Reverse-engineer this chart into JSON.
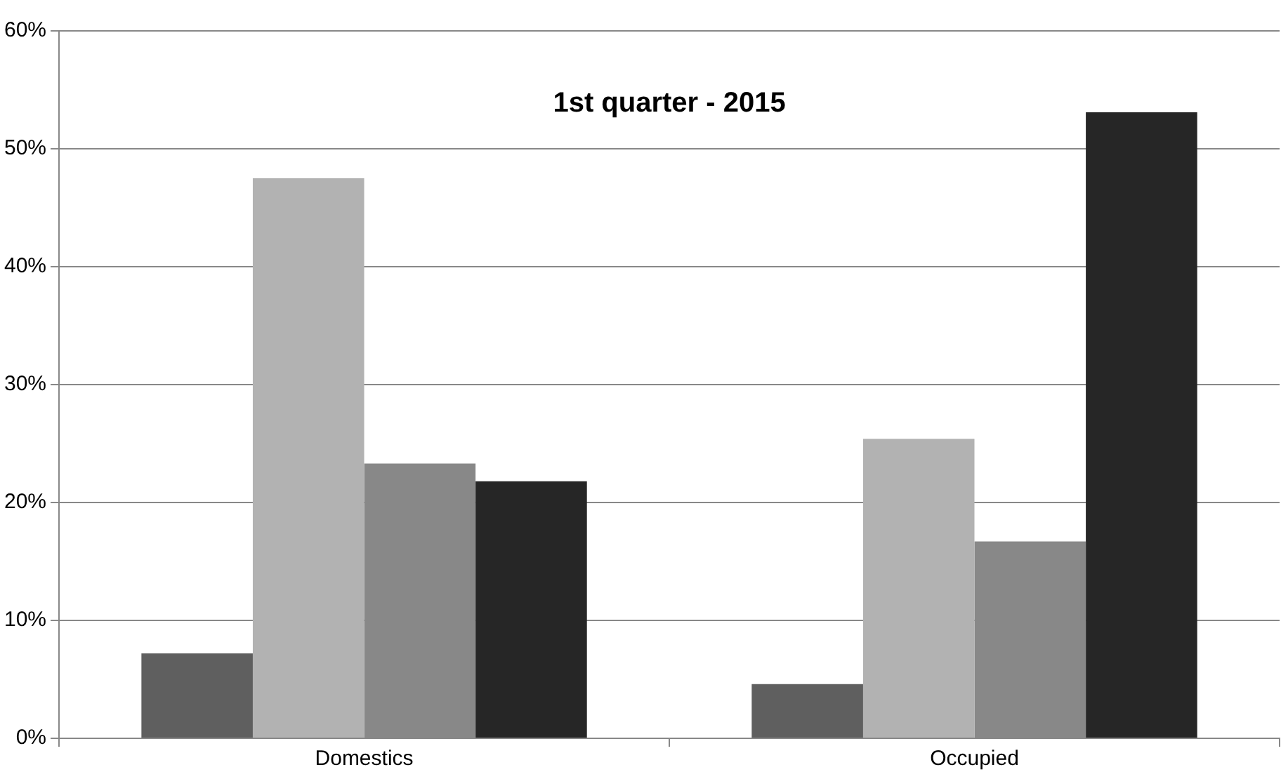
{
  "chart_data": {
    "type": "bar",
    "title": "1st quarter - 2015",
    "categories": [
      "Domestics",
      "Occupied"
    ],
    "series": [
      {
        "color": "#5f5f5f",
        "values": [
          7.2,
          4.6
        ]
      },
      {
        "color": "#b2b2b2",
        "values": [
          47.5,
          25.4
        ]
      },
      {
        "color": "#888888",
        "values": [
          23.3,
          16.7
        ]
      },
      {
        "color": "#262626",
        "values": [
          21.8,
          53.1
        ]
      }
    ],
    "ylim": [
      0,
      60
    ],
    "yticks": [
      {
        "value": 0,
        "label": "0%"
      },
      {
        "value": 10,
        "label": "10%"
      },
      {
        "value": 20,
        "label": "20%"
      },
      {
        "value": 30,
        "label": "30%"
      },
      {
        "value": 40,
        "label": "40%"
      },
      {
        "value": 50,
        "label": "50%"
      },
      {
        "value": 60,
        "label": "60%"
      }
    ],
    "grid": "y",
    "legend": false
  }
}
